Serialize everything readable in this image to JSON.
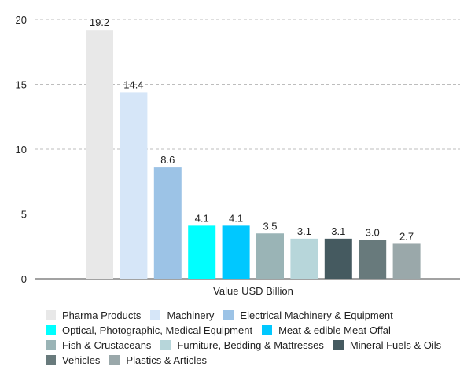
{
  "chart_data": {
    "type": "bar",
    "categories": [
      "Pharma Products",
      "Machinery",
      "Electrical Machinery & Equipment",
      "Optical, Photographic, Medical Equipment",
      "Meat & edible Meat Offal",
      "Fish & Crustaceans",
      "Furniture, Bedding & Mattresses",
      "Mineral Fuels & Oils",
      "Vehicles",
      "Plastics & Articles"
    ],
    "values": [
      19.2,
      14.4,
      8.6,
      4.1,
      4.1,
      3.5,
      3.1,
      3.1,
      3.0,
      2.7
    ],
    "value_labels": [
      "19.2",
      "14.4",
      "8.6",
      "4.1",
      "4.1",
      "3.5",
      "3.1",
      "3.1",
      "3.0",
      "2.7"
    ],
    "colors": [
      "#e8e8e8",
      "#d6e6f8",
      "#9cc3e6",
      "#00ffff",
      "#00c8ff",
      "#9ab4b6",
      "#b7d6da",
      "#455a60",
      "#687a7c",
      "#9aa8aa"
    ],
    "xlabel": "Value USD Billion",
    "ylabel": "",
    "ylim": [
      0,
      20
    ],
    "yticks": [
      0,
      5,
      10,
      15,
      20
    ],
    "ytick_labels": [
      "0",
      "5",
      "10",
      "15",
      "20"
    ],
    "grid": "horizontal dashed",
    "legend": {
      "placement": "bottom",
      "rows": [
        [
          0,
          1,
          2
        ],
        [
          3,
          4
        ],
        [
          5,
          6,
          7
        ],
        [
          8,
          9
        ]
      ]
    }
  }
}
